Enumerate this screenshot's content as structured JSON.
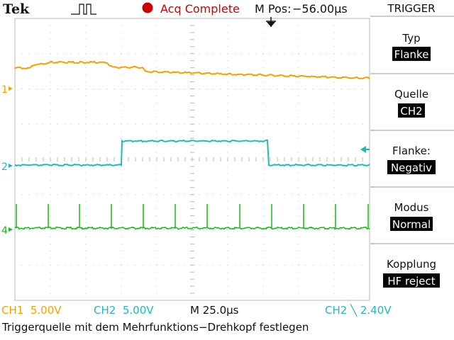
{
  "header": {
    "brand": "Tek",
    "acq_status": "Acq Complete",
    "mpos_label": "M Pos:",
    "mpos_value": "−56.00µs"
  },
  "side_menu": {
    "title": "TRIGGER",
    "items": [
      {
        "label": "Typ",
        "value": "Flanke"
      },
      {
        "label": "Quelle",
        "value": "CH2"
      },
      {
        "label": "Flanke:",
        "value": "Negativ"
      },
      {
        "label": "Modus",
        "value": "Normal"
      },
      {
        "label": "Kopplung",
        "value": "HF reject"
      }
    ]
  },
  "channel_markers": {
    "ch1": "1",
    "ch2": "2",
    "ch4": "4"
  },
  "readouts": {
    "ch1_scale": "CH1  5.00V",
    "ch2_scale": "CH2  5.00V",
    "timebase": "M 25.0µs",
    "trigger": "CH2 ╲ 2.40V"
  },
  "status_line": "Triggerquelle mit dem Mehrfunktions−Drehkopf festlegen",
  "colors": {
    "ch1": "#f5a000",
    "ch2": "#20b8c0",
    "ch4": "#18b818",
    "acq_dot": "#cc0000",
    "graticule": "#b8b8b8"
  },
  "icons": [
    "trigger-position-arrow-icon",
    "acq-record-dot-icon",
    "pulse-waveform-icon",
    "trigger-level-arrow-icon",
    "falling-edge-icon"
  ]
}
